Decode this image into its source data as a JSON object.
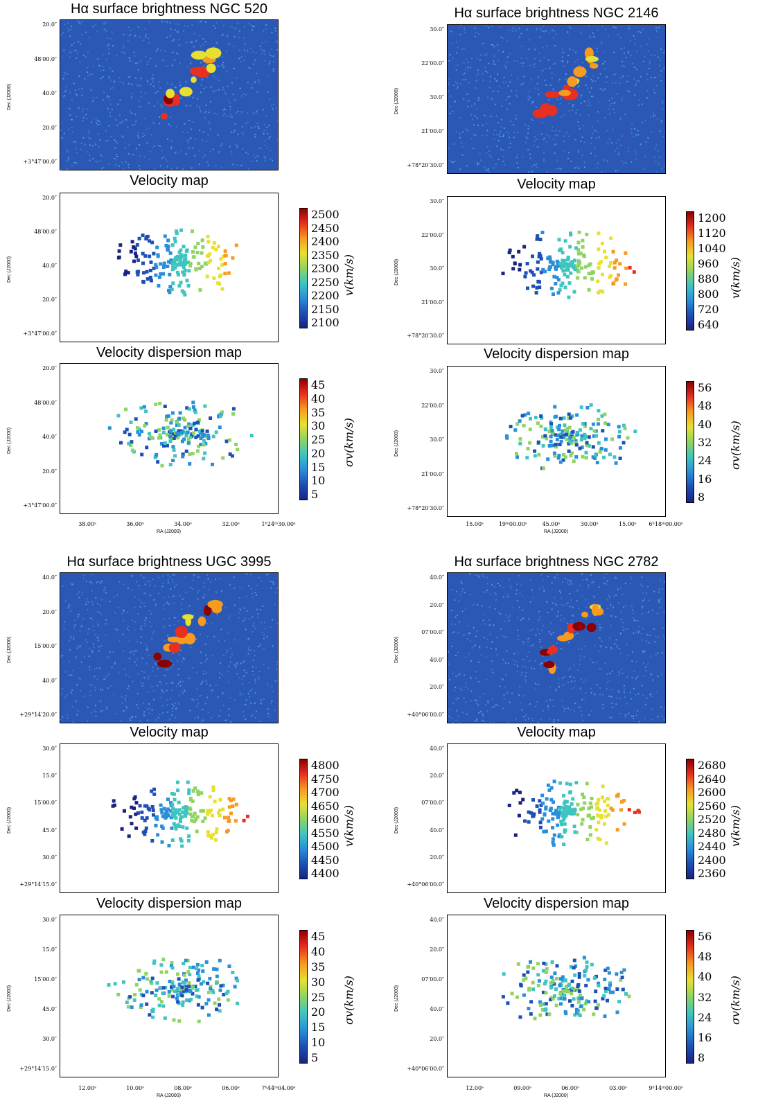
{
  "figure": {
    "galaxies": [
      {
        "id": "ngc520",
        "titles": {
          "surface": "Hα surface brightness NGC 520",
          "velocity": "Velocity map",
          "dispersion": "Velocity dispersion map"
        },
        "dec_label": "Dec (J2000)",
        "ra_label": "RA (J2000)",
        "dec_ticks_surface": [
          "20.0″",
          "48′00.0″",
          "40.0″",
          "20.0″",
          "+3°47′00.0″"
        ],
        "dec_ticks_velocity": [
          "20.0″",
          "48′00.0″",
          "40.0″",
          "20.0″",
          "+3°47′00.0″"
        ],
        "dec_ticks_dispersion": [
          "20.0″",
          "48′00.0″",
          "40.0″",
          "20.0″",
          "+3°47′00.0″"
        ],
        "ra_ticks": [
          "38.00ˢ",
          "36.00ˢ",
          "34.00ˢ",
          "32.00ˢ",
          "1ʰ24ᵐ30.00ˢ"
        ],
        "velocity_colorbar": {
          "label": "v(km/s)",
          "ticks": [
            "2500",
            "2450",
            "2400",
            "2350",
            "2300",
            "2250",
            "2200",
            "2150",
            "2100"
          ]
        },
        "dispersion_colorbar": {
          "label": "σv(km/s)",
          "ticks": [
            "45",
            "40",
            "35",
            "30",
            "25",
            "20",
            "15",
            "10",
            "5"
          ]
        }
      },
      {
        "id": "ngc2146",
        "titles": {
          "surface": "Hα surface brightness NGC 2146",
          "velocity": "Velocity map",
          "dispersion": "Velocity dispersion map"
        },
        "dec_label": "Dec (J2000)",
        "ra_label": "RA (J2000)",
        "dec_ticks_surface": [
          "30.0″",
          "22′00.0″",
          "30.0″",
          "21′00.0″",
          "+78°20′30.0″"
        ],
        "dec_ticks_velocity": [
          "30.0″",
          "22′00.0″",
          "30.0″",
          "21′00.0″",
          "+78°20′30.0″"
        ],
        "dec_ticks_dispersion": [
          "30.0″",
          "22′00.0″",
          "30.0″",
          "21′00.0″",
          "+78°20′30.0″"
        ],
        "ra_ticks": [
          "15.00ˢ",
          "19ᵐ00.00ˢ",
          "45.00ˢ",
          "30.00ˢ",
          "15.00ˢ",
          "6ʰ18ᵐ00.00ˢ"
        ],
        "velocity_colorbar": {
          "label": "v(km/s)",
          "ticks": [
            "1200",
            "1120",
            "1040",
            "960",
            "880",
            "800",
            "720",
            "640"
          ]
        },
        "dispersion_colorbar": {
          "label": "σv(km/s)",
          "ticks": [
            "56",
            "48",
            "40",
            "32",
            "24",
            "16",
            "8"
          ]
        }
      },
      {
        "id": "ugc3995",
        "titles": {
          "surface": "Hα surface brightness UGC 3995",
          "velocity": "Velocity map",
          "dispersion": "Velocity dispersion map"
        },
        "dec_label": "Dec (J2000)",
        "ra_label": "RA (J2000)",
        "dec_ticks_surface": [
          "40.0″",
          "20.0″",
          "15′00.0″",
          "40.0″",
          "+29°14′20.0″"
        ],
        "dec_ticks_velocity": [
          "30.0″",
          "15.0″",
          "15′00.0″",
          "45.0″",
          "30.0″",
          "+29°14′15.0″"
        ],
        "dec_ticks_dispersion": [
          "30.0″",
          "15.0″",
          "15′00.0″",
          "45.0″",
          "30.0″",
          "+29°14′15.0″"
        ],
        "ra_ticks": [
          "12.00ˢ",
          "10.00ˢ",
          "08.00ˢ",
          "06.00ˢ",
          "7ʰ44ᵐ04.00ˢ"
        ],
        "velocity_colorbar": {
          "label": "v(km/s)",
          "ticks": [
            "4800",
            "4750",
            "4700",
            "4650",
            "4600",
            "4550",
            "4500",
            "4450",
            "4400"
          ]
        },
        "dispersion_colorbar": {
          "label": "σv(km/s)",
          "ticks": [
            "45",
            "40",
            "35",
            "30",
            "25",
            "20",
            "15",
            "10",
            "5"
          ]
        }
      },
      {
        "id": "ngc2782",
        "titles": {
          "surface": "Hα surface brightness NGC 2782",
          "velocity": "Velocity map",
          "dispersion": "Velocity dispersion map"
        },
        "dec_label": "Dec (J2000)",
        "ra_label": "RA (J2000)",
        "dec_ticks_surface": [
          "40.0″",
          "20.0″",
          "07′00.0″",
          "40.0″",
          "20.0″",
          "+40°06′00.0″"
        ],
        "dec_ticks_velocity": [
          "40.0″",
          "20.0″",
          "07′00.0″",
          "40.0″",
          "20.0″",
          "+40°06′00.0″"
        ],
        "dec_ticks_dispersion": [
          "40.0″",
          "20.0″",
          "07′00.0″",
          "40.0″",
          "20.0″",
          "+40°06′00.0″"
        ],
        "ra_ticks": [
          "12.00ˢ",
          "09.00ˢ",
          "06.00ˢ",
          "03.00ˢ",
          "9ʰ14ᵐ00.00ˢ"
        ],
        "velocity_colorbar": {
          "label": "v(km/s)",
          "ticks": [
            "2680",
            "2640",
            "2600",
            "2560",
            "2520",
            "2480",
            "2440",
            "2400",
            "2360"
          ]
        },
        "dispersion_colorbar": {
          "label": "σv(km/s)",
          "ticks": [
            "56",
            "48",
            "40",
            "32",
            "24",
            "16",
            "8"
          ]
        }
      }
    ],
    "colormap": [
      "#1a237e",
      "#1e4fb4",
      "#2a8fd8",
      "#40c4c0",
      "#8fd460",
      "#e8e030",
      "#f79a20",
      "#e83020",
      "#8b0000"
    ]
  }
}
